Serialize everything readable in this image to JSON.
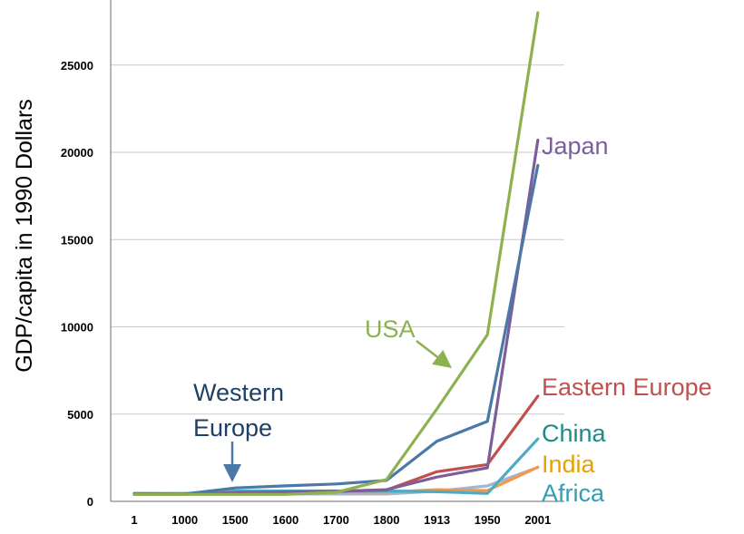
{
  "chart_data": {
    "type": "line",
    "title": "",
    "xlabel": "",
    "ylabel": "GDP/capita in 1990 Dollars",
    "categories": [
      "1",
      "1000",
      "1500",
      "1600",
      "1700",
      "1800",
      "1913",
      "1950",
      "2001"
    ],
    "yticks": [
      "0",
      "5000",
      "10000",
      "15000",
      "20000",
      "25000"
    ],
    "ylim": [
      0,
      28000
    ],
    "grid": true,
    "series": [
      {
        "name": "USA",
        "color": "#8db14f",
        "values": [
          400,
          400,
          400,
          400,
          520,
          1250,
          5300,
          9550,
          28000
        ]
      },
      {
        "name": "Western Europe",
        "color": "#4a79a8",
        "values": [
          450,
          420,
          770,
          890,
          1000,
          1200,
          3450,
          4580,
          19250
        ]
      },
      {
        "name": "Japan",
        "color": "#7b5e9a",
        "values": [
          400,
          400,
          500,
          520,
          570,
          670,
          1390,
          1920,
          20700
        ]
      },
      {
        "name": "Eastern Europe",
        "color": "#c0504d",
        "values": [
          400,
          400,
          500,
          540,
          580,
          650,
          1700,
          2110,
          6030
        ]
      },
      {
        "name": "China",
        "color": "#4bacc6",
        "values": [
          450,
          450,
          600,
          600,
          600,
          600,
          550,
          450,
          3580
        ]
      },
      {
        "name": "India",
        "color": "#f79646",
        "values": [
          450,
          450,
          550,
          550,
          550,
          530,
          670,
          620,
          1960
        ]
      },
      {
        "name": "Africa",
        "color": "#a3b6ce",
        "values": [
          430,
          430,
          410,
          420,
          420,
          420,
          580,
          890,
          1950
        ]
      }
    ],
    "annotations": [
      {
        "text": "USA",
        "color": "#8db14f"
      },
      {
        "text": "Japan",
        "color": "#7b5e9a"
      },
      {
        "text": "Western",
        "color": "#1f3f66"
      },
      {
        "text": "Europe",
        "color": "#1f3f66"
      },
      {
        "text": "Eastern Europe",
        "color": "#c0504d"
      },
      {
        "text": "China",
        "color": "#1e8b8a"
      },
      {
        "text": "India",
        "color": "#e8a000"
      },
      {
        "text": "Africa",
        "color": "#2fa0b4"
      }
    ]
  }
}
